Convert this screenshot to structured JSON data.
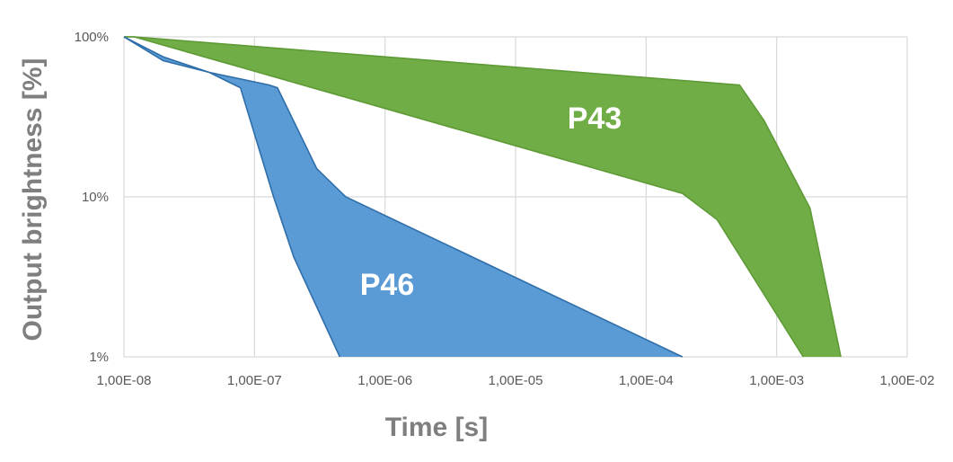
{
  "chart_data": {
    "type": "area",
    "title": "",
    "xlabel": "Time [s]",
    "ylabel": "Output brightness [%]",
    "x_scale": "log",
    "y_scale": "log",
    "xlim": [
      1e-08,
      0.01
    ],
    "ylim": [
      1,
      100
    ],
    "grid": true,
    "legend": "none",
    "x_ticks": [
      {
        "value": 1e-08,
        "label": "1,00E-08"
      },
      {
        "value": 1e-07,
        "label": "1,00E-07"
      },
      {
        "value": 1e-06,
        "label": "1,00E-06"
      },
      {
        "value": 1e-05,
        "label": "1,00E-05"
      },
      {
        "value": 0.0001,
        "label": "1,00E-04"
      },
      {
        "value": 0.001,
        "label": "1,00E-03"
      },
      {
        "value": 0.01,
        "label": "1,00E-02"
      }
    ],
    "y_ticks": [
      {
        "value": 1,
        "label": "1%"
      },
      {
        "value": 10,
        "label": "10%"
      },
      {
        "value": 100,
        "label": "100%"
      }
    ],
    "series": [
      {
        "name": "P43",
        "color": "#70ad47",
        "upper_bound": [
          [
            1e-08,
            100
          ],
          [
            1.2e-08,
            100
          ],
          [
            0.00052,
            50
          ],
          [
            0.0008,
            30
          ],
          [
            0.0018,
            8.5
          ],
          [
            0.0031,
            1
          ]
        ],
        "lower_bound": [
          [
            1e-08,
            100
          ],
          [
            1.2e-08,
            100
          ],
          [
            0.00019,
            10.5
          ],
          [
            0.00035,
            7.2
          ],
          [
            0.0016,
            1
          ]
        ]
      },
      {
        "name": "P46",
        "color": "#5b9bd5",
        "upper_bound": [
          [
            1e-08,
            100
          ],
          [
            2e-08,
            75
          ],
          [
            4.5e-08,
            60
          ],
          [
            1.3e-07,
            50
          ],
          [
            1.5e-07,
            48
          ],
          [
            3e-07,
            15
          ],
          [
            5e-07,
            10
          ],
          [
            0.00019,
            1
          ]
        ],
        "lower_bound": [
          [
            1e-08,
            100
          ],
          [
            2e-08,
            71
          ],
          [
            4.5e-08,
            60
          ],
          [
            7.8e-08,
            48
          ],
          [
            1.4e-07,
            10
          ],
          [
            2e-07,
            4.2
          ],
          [
            4.5e-07,
            1
          ]
        ]
      }
    ]
  }
}
